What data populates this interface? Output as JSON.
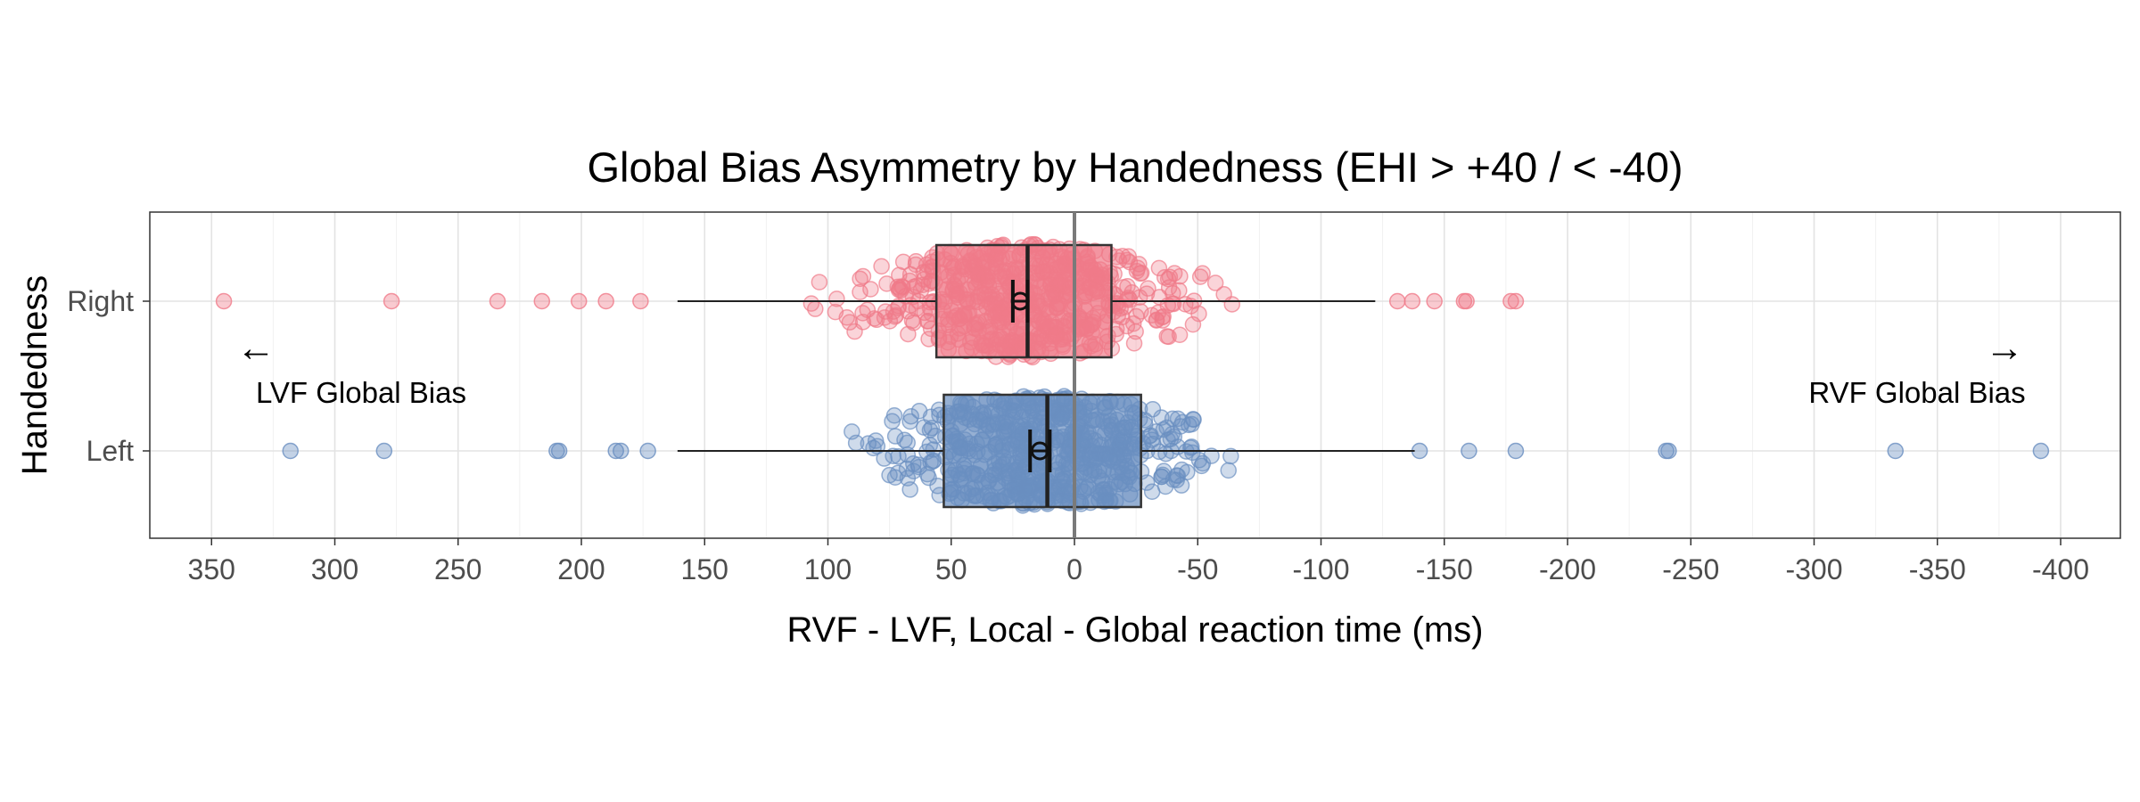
{
  "chart_data": {
    "type": "boxplot",
    "title": "Global Bias Asymmetry by Handedness (EHI > +40 / < -40)",
    "xlabel": "RVF - LVF, Local - Global reaction time (ms)",
    "ylabel": "Handedness",
    "xlim": [
      370,
      -410
    ],
    "x_reversed": true,
    "x_ticks": [
      350,
      300,
      250,
      200,
      150,
      100,
      50,
      0,
      -50,
      -100,
      -150,
      -200,
      -250,
      -300,
      -350,
      -400
    ],
    "x_tick_labels": [
      "350",
      "300",
      "250",
      "200",
      "150",
      "100",
      "50",
      "0",
      "-50",
      "-100",
      "-150",
      "-200",
      "-250",
      "-300",
      "-350",
      "-400"
    ],
    "categories": [
      "Left",
      "Right"
    ],
    "grid": true,
    "reference_line_x": 0,
    "annotations": [
      {
        "arrow": "←",
        "text": "LVF Global Bias",
        "side": "left"
      },
      {
        "arrow": "→",
        "text": "RVF Global Bias",
        "side": "right"
      }
    ],
    "series": [
      {
        "name": "Right",
        "color": "#F07A89",
        "box": {
          "whisker_low": -122,
          "q1": -15,
          "median": 19,
          "q3": 56,
          "whisker_high": 161
        },
        "mean": 22,
        "mean_ci": [
          25,
          19
        ],
        "outliers": [
          345,
          277,
          234,
          216,
          201,
          190,
          176,
          -131,
          -137,
          -146,
          -158,
          -159,
          -177,
          -179
        ]
      },
      {
        "name": "Left",
        "color": "#6A8FC1",
        "box": {
          "whisker_low": -138,
          "q1": -27,
          "median": 11,
          "q3": 53,
          "whisker_high": 161
        },
        "mean": 14,
        "mean_ci": [
          18,
          10
        ],
        "outliers": [
          318,
          280,
          210,
          209,
          186,
          184,
          173,
          -140,
          -160,
          -179,
          -240,
          -241,
          -333,
          -392
        ]
      }
    ]
  }
}
